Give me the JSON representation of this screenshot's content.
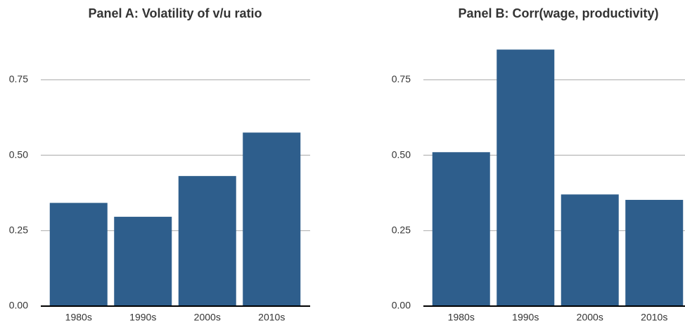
{
  "chart_data": [
    {
      "type": "bar",
      "title": "Panel A: Volatility of v/u ratio",
      "categories": [
        "1980s",
        "1990s",
        "2000s",
        "2010s"
      ],
      "values": [
        0.342,
        0.296,
        0.431,
        0.575
      ],
      "color": "#2e5e8c",
      "ylim": [
        0,
        0.9
      ],
      "yticks": [
        {
          "value": 0,
          "label": "0.00"
        },
        {
          "value": 0.25,
          "label": "0.25"
        },
        {
          "value": 0.5,
          "label": "0.50"
        },
        {
          "value": 0.75,
          "label": "0.75"
        }
      ],
      "grid": true
    },
    {
      "type": "bar",
      "title": "Panel B: Corr(wage, productivity)",
      "categories": [
        "1980s",
        "1990s",
        "2000s",
        "2010s"
      ],
      "values": [
        0.51,
        0.85,
        0.37,
        0.352
      ],
      "color": "#2e5e8c",
      "ylim": [
        0,
        0.9
      ],
      "yticks": [
        {
          "value": 0,
          "label": "0.00"
        },
        {
          "value": 0.25,
          "label": "0.25"
        },
        {
          "value": 0.5,
          "label": "0.50"
        },
        {
          "value": 0.75,
          "label": "0.75"
        }
      ],
      "grid": true
    }
  ]
}
